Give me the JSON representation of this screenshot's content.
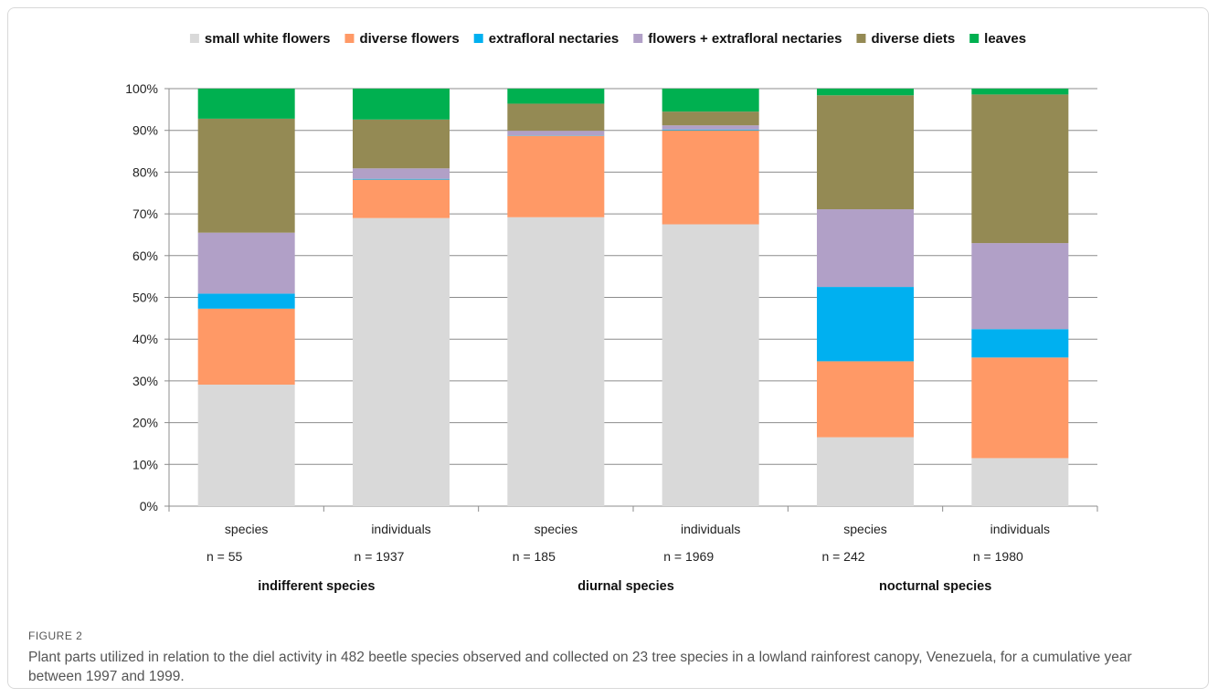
{
  "figure": {
    "label": "FIGURE 2",
    "caption": "Plant parts utilized in relation to the diel activity in 482 beetle species observed and collected on 23 tree species in a lowland rainforest canopy, Venezuela, for a cumulative year between 1997 and 1999."
  },
  "chart_data": {
    "type": "bar",
    "stacked": true,
    "percent": true,
    "categories": [
      "species",
      "individuals",
      "species",
      "individuals",
      "species",
      "individuals"
    ],
    "sample_sizes": [
      "n = 55",
      "n = 1937",
      "n = 185",
      "n = 1969",
      "n = 242",
      "n = 1980"
    ],
    "groups": [
      {
        "label": "indifferent species",
        "span": [
          0,
          1
        ]
      },
      {
        "label": "diurnal species",
        "span": [
          2,
          3
        ]
      },
      {
        "label": "nocturnal species",
        "span": [
          4,
          5
        ]
      }
    ],
    "ylim": [
      0,
      100
    ],
    "yticks": [
      "0%",
      "10%",
      "20%",
      "30%",
      "40%",
      "50%",
      "60%",
      "70%",
      "80%",
      "90%",
      "100%"
    ],
    "grid": true,
    "legend_position": "top",
    "series": [
      {
        "name": "small white flowers",
        "color": "#d9d9d9",
        "values": [
          29.1,
          69.0,
          69.2,
          67.5,
          16.5,
          11.5
        ]
      },
      {
        "name": "diverse flowers",
        "color": "#ff9966",
        "values": [
          18.2,
          9.2,
          19.5,
          22.5,
          18.2,
          24.1
        ]
      },
      {
        "name": "extrafloral nectaries",
        "color": "#00b0f0",
        "values": [
          3.6,
          0.2,
          0.1,
          0.2,
          17.8,
          6.8
        ]
      },
      {
        "name": "flowers + extrafloral nectaries",
        "color": "#b1a0c7",
        "values": [
          14.6,
          2.5,
          1.1,
          1.0,
          18.6,
          20.6
        ]
      },
      {
        "name": "diverse diets",
        "color": "#948a54",
        "values": [
          27.3,
          11.7,
          6.5,
          3.3,
          27.3,
          35.6
        ]
      },
      {
        "name": "leaves",
        "color": "#00b050",
        "values": [
          7.2,
          7.4,
          3.6,
          5.5,
          1.6,
          1.4
        ]
      }
    ]
  }
}
